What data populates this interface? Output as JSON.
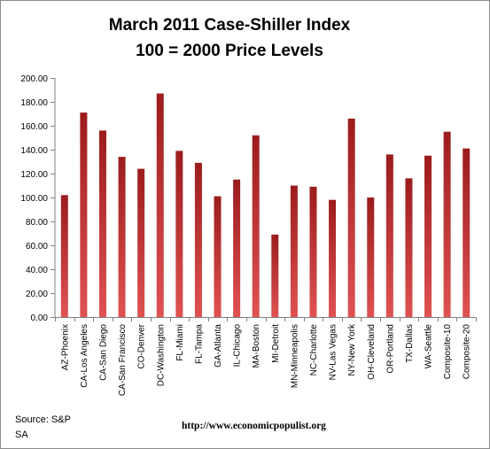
{
  "chart_data": {
    "type": "bar",
    "title_lines": [
      "March 2011 Case-Shiller Index",
      "100 = 2000 Price Levels"
    ],
    "categories": [
      "AZ-Phoenix",
      "CA-Los Angeles",
      "CA-San Diego",
      "CA-San Francisco",
      "CO-Denver",
      "DC-Washington",
      "FL-Miami",
      "FL-Tampa",
      "GA-Atlanta",
      "IL-Chicago",
      "MA-Boston",
      "MI-Detroit",
      "MN-Minneapolis",
      "NC-Charlotte",
      "NV-Las Vegas",
      "NY-New York",
      "OH-Cleveland",
      "OR-Portland",
      "TX-Dallas",
      "WA-Seattle",
      "Composite-10",
      "Composite-20"
    ],
    "values": [
      102,
      171,
      156,
      134,
      124,
      187,
      139,
      129,
      101,
      115,
      152,
      69,
      110,
      109,
      98,
      166,
      100,
      136,
      116,
      135,
      155,
      141
    ],
    "ylim": [
      0,
      200
    ],
    "yticks": [
      0,
      20,
      40,
      60,
      80,
      100,
      120,
      140,
      160,
      180,
      200
    ],
    "ytick_labels": [
      "0.00",
      "20.00",
      "40.00",
      "60.00",
      "80.00",
      "100.00",
      "120.00",
      "140.00",
      "160.00",
      "180.00",
      "200.00"
    ],
    "xlabel": "",
    "ylabel": "",
    "grid": false,
    "bar_color_top": "#9b1c1c",
    "bar_color_bottom": "#e05252"
  },
  "source": {
    "line1": "Source:  S&P",
    "line2": "SA"
  },
  "url": "http://www.economicpopulist.org"
}
